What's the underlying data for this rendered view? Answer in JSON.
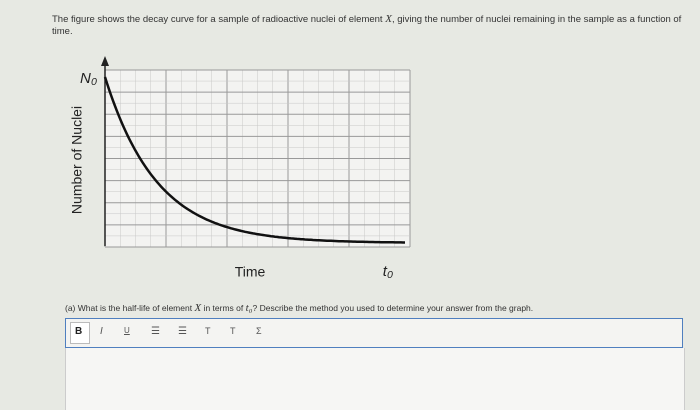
{
  "question": {
    "before": "The figure shows the decay curve for a sample of radioactive nuclei of element ",
    "variable": "X",
    "after": ", giving the number of nuclei remaining in the sample as a function of time."
  },
  "figure": {
    "y_label": "Number of Nuclei",
    "y_marker": "N₀",
    "x_label": "Time",
    "x_marker": "t₀"
  },
  "part_a": {
    "before": "(a) What is the half-life of element ",
    "variable": "X",
    "middle": " in terms of ",
    "symbol": "t₀",
    "after": "? Describe the method you used to determine your answer from the graph."
  },
  "toolbar": [
    "B",
    "I",
    "U",
    "T",
    "T",
    "Σ"
  ]
}
